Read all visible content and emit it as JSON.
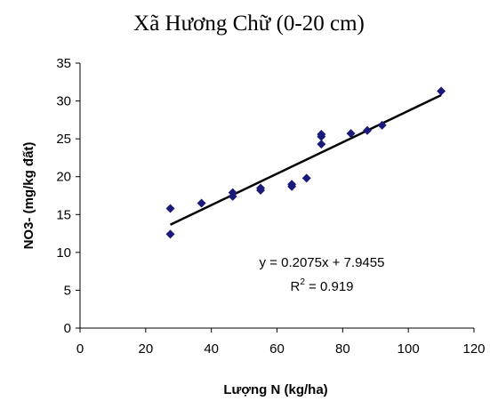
{
  "chart_data": {
    "type": "scatter",
    "title": "Xã Hương Chữ (0-20 cm)",
    "xlabel": "Lượng N (kg/ha)",
    "ylabel": "NO3- (mg/kg đất)",
    "xlim": [
      0,
      120
    ],
    "ylim": [
      0,
      35
    ],
    "x_ticks": [
      0,
      20,
      40,
      60,
      80,
      100,
      120
    ],
    "y_ticks": [
      0,
      5,
      10,
      15,
      20,
      25,
      30,
      35
    ],
    "grid": false,
    "legend": "none",
    "marker_color": "#1a1a7a",
    "line_color": "#000000",
    "points": [
      {
        "x": 27.5,
        "y": 12.4
      },
      {
        "x": 27.5,
        "y": 15.8
      },
      {
        "x": 37,
        "y": 16.5
      },
      {
        "x": 46.5,
        "y": 17.4
      },
      {
        "x": 46.5,
        "y": 17.9
      },
      {
        "x": 55,
        "y": 18.2
      },
      {
        "x": 55,
        "y": 18.5
      },
      {
        "x": 64.5,
        "y": 18.7
      },
      {
        "x": 64.5,
        "y": 19.0
      },
      {
        "x": 69,
        "y": 19.8
      },
      {
        "x": 73.5,
        "y": 24.3
      },
      {
        "x": 73.5,
        "y": 25.3
      },
      {
        "x": 73.5,
        "y": 25.6
      },
      {
        "x": 82.5,
        "y": 25.7
      },
      {
        "x": 87.5,
        "y": 26.1
      },
      {
        "x": 92,
        "y": 26.8
      },
      {
        "x": 110,
        "y": 31.3
      }
    ],
    "trendline": {
      "slope": 0.2075,
      "intercept": 7.9455,
      "x_range": [
        27.5,
        110
      ],
      "equation": "y = 0.2075x + 7.9455",
      "r2_prefix": "R",
      "r2_sup": "2",
      "r2_value": " = 0.919"
    }
  }
}
